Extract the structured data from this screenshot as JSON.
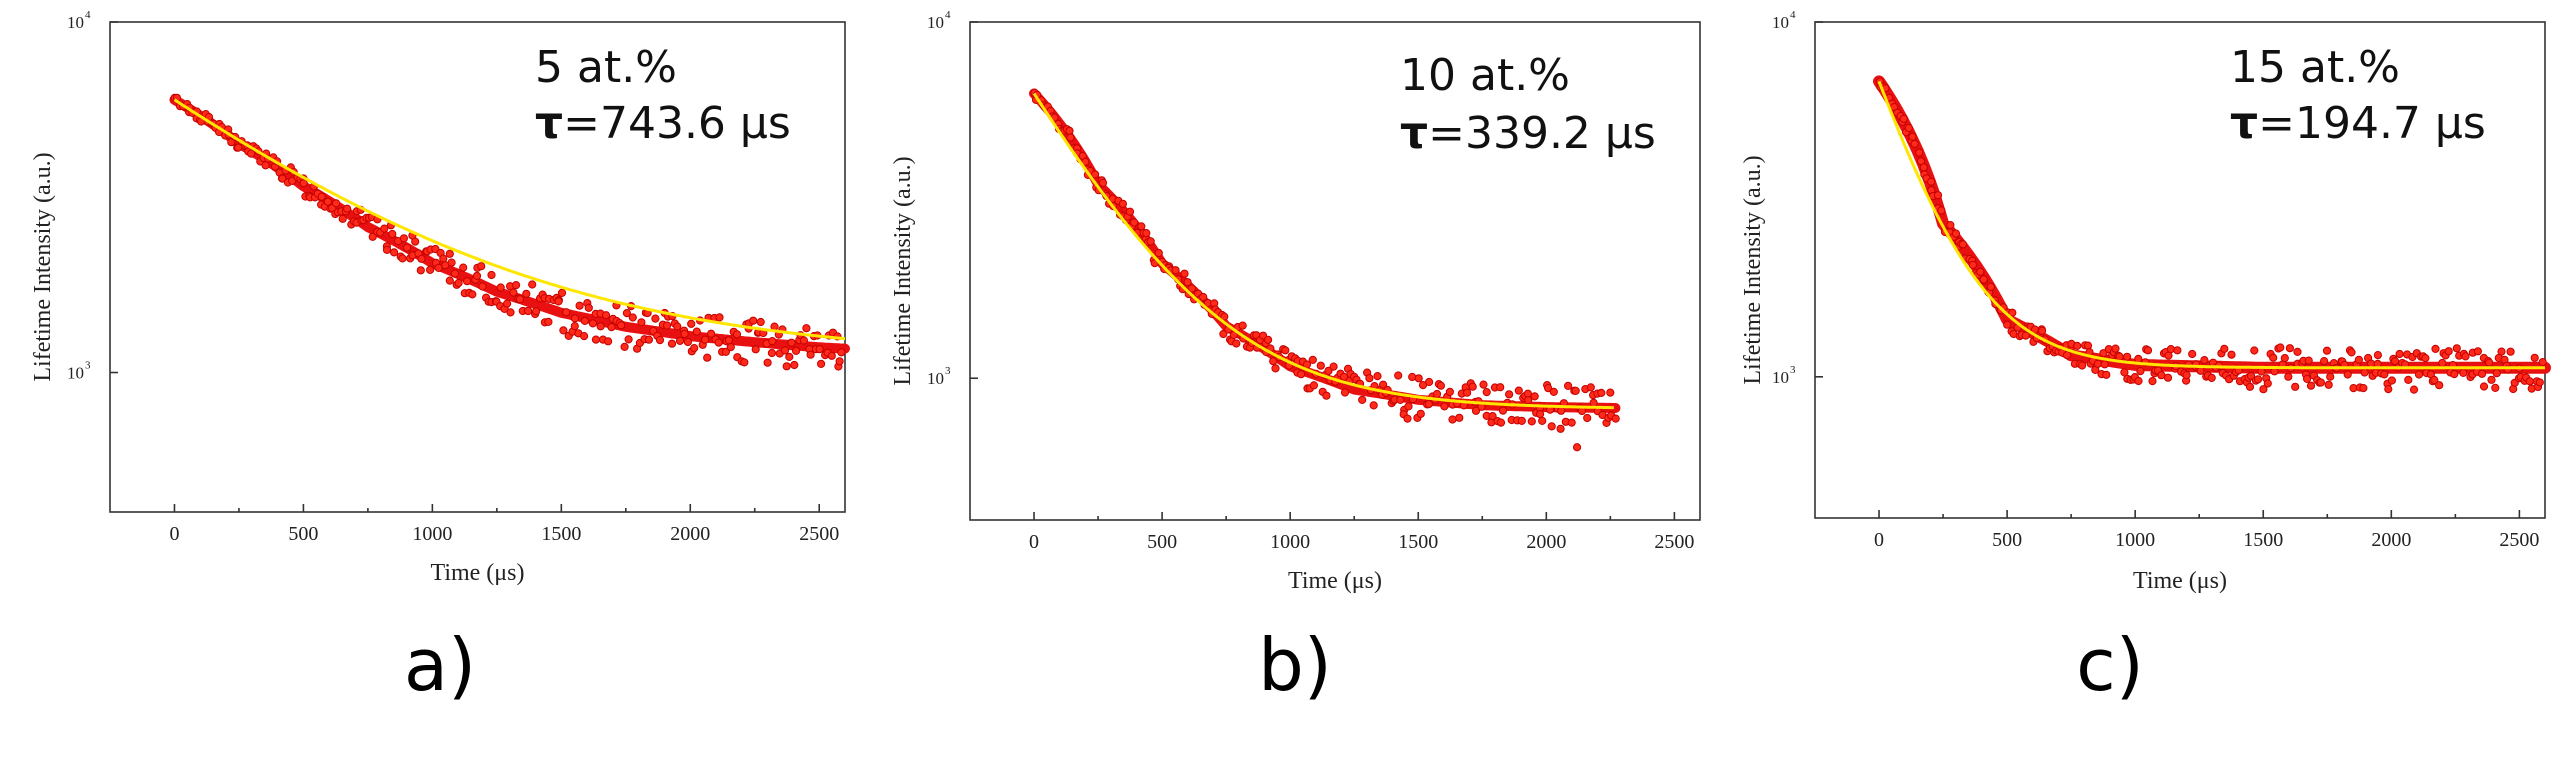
{
  "chart_data": [
    {
      "type": "scatter",
      "panel": "a)",
      "xlabel": "Time (μs)",
      "ylabel": "Lifetime Intensity (a.u.)",
      "xlim": [
        -250,
        2600
      ],
      "ylim": [
        400,
        10000
      ],
      "y_scale": "log",
      "xticks": [
        "0",
        "500",
        "1000",
        "1500",
        "2000",
        "2500"
      ],
      "yticks": [
        {
          "base": "10",
          "exp": "3",
          "value": 1000
        },
        {
          "base": "10",
          "exp": "4",
          "value": 10000
        }
      ],
      "annotation": {
        "line1": "5 at.%",
        "tau_symbol": "τ",
        "tau_value": "=743.6 μs"
      },
      "x_end": 2600,
      "series": [
        {
          "kind": "measured",
          "color": "#ff2a1a",
          "x": [
            0,
            250,
            500,
            750,
            1000,
            1250,
            1500,
            1750,
            2000,
            2250,
            2500,
            2600
          ],
          "y": [
            6000,
            4500,
            3400,
            2600,
            2050,
            1700,
            1480,
            1350,
            1270,
            1220,
            1180,
            1170
          ]
        },
        {
          "kind": "fit",
          "color": "#ffe600",
          "model": "y0 + A*exp(-x/tau)",
          "y0": 1100,
          "A": 4900,
          "tau": 743.6
        }
      ]
    },
    {
      "type": "scatter",
      "panel": "b)",
      "xlabel": "Time (μs)",
      "ylabel": "Lifetime Intensity (a.u.)",
      "xlim": [
        -250,
        2600
      ],
      "ylim": [
        400,
        10000
      ],
      "y_scale": "log",
      "xticks": [
        "0",
        "500",
        "1000",
        "1500",
        "2000",
        "2500"
      ],
      "yticks": [
        {
          "base": "10",
          "exp": "3",
          "value": 1000
        },
        {
          "base": "10",
          "exp": "4",
          "value": 10000
        }
      ],
      "annotation": {
        "line1": "10 at.%",
        "tau_symbol": "τ",
        "tau_value": "=339.2 μs"
      },
      "x_end": 2270,
      "series": [
        {
          "kind": "measured",
          "color": "#ff2a1a",
          "x": [
            0,
            250,
            500,
            750,
            1000,
            1250,
            1500,
            1750,
            2000,
            2270
          ],
          "y": [
            6300,
            3500,
            2100,
            1400,
            1080,
            930,
            870,
            840,
            830,
            825
          ]
        },
        {
          "kind": "fit",
          "color": "#ffe600",
          "model": "y0 + A*exp(-x/tau)",
          "y0": 820,
          "A": 5480,
          "tau": 339.2
        }
      ]
    },
    {
      "type": "scatter",
      "panel": "c)",
      "xlabel": "Time (μs)",
      "ylabel": "Lifetime Intensity (a.u.)",
      "xlim": [
        -250,
        2600
      ],
      "ylim": [
        400,
        10000
      ],
      "y_scale": "log",
      "xticks": [
        "0",
        "500",
        "1000",
        "1500",
        "2000",
        "2500"
      ],
      "yticks": [
        {
          "base": "10",
          "exp": "3",
          "value": 1000
        },
        {
          "base": "10",
          "exp": "4",
          "value": 10000
        }
      ],
      "annotation": {
        "line1": "15 at.%",
        "tau_symbol": "τ",
        "tau_value": "=194.7 μs"
      },
      "x_end": 2600,
      "series": [
        {
          "kind": "measured",
          "color": "#ff2a1a",
          "x": [
            0,
            250,
            500,
            750,
            1000,
            1500,
            2000,
            2500,
            2600
          ],
          "y": [
            6800,
            2700,
            1450,
            1150,
            1080,
            1060,
            1060,
            1060,
            1060
          ]
        },
        {
          "kind": "fit",
          "color": "#ffe600",
          "model": "y0 + A*exp(-x/tau)",
          "y0": 1060,
          "A": 5740,
          "tau": 194.7
        }
      ]
    }
  ]
}
